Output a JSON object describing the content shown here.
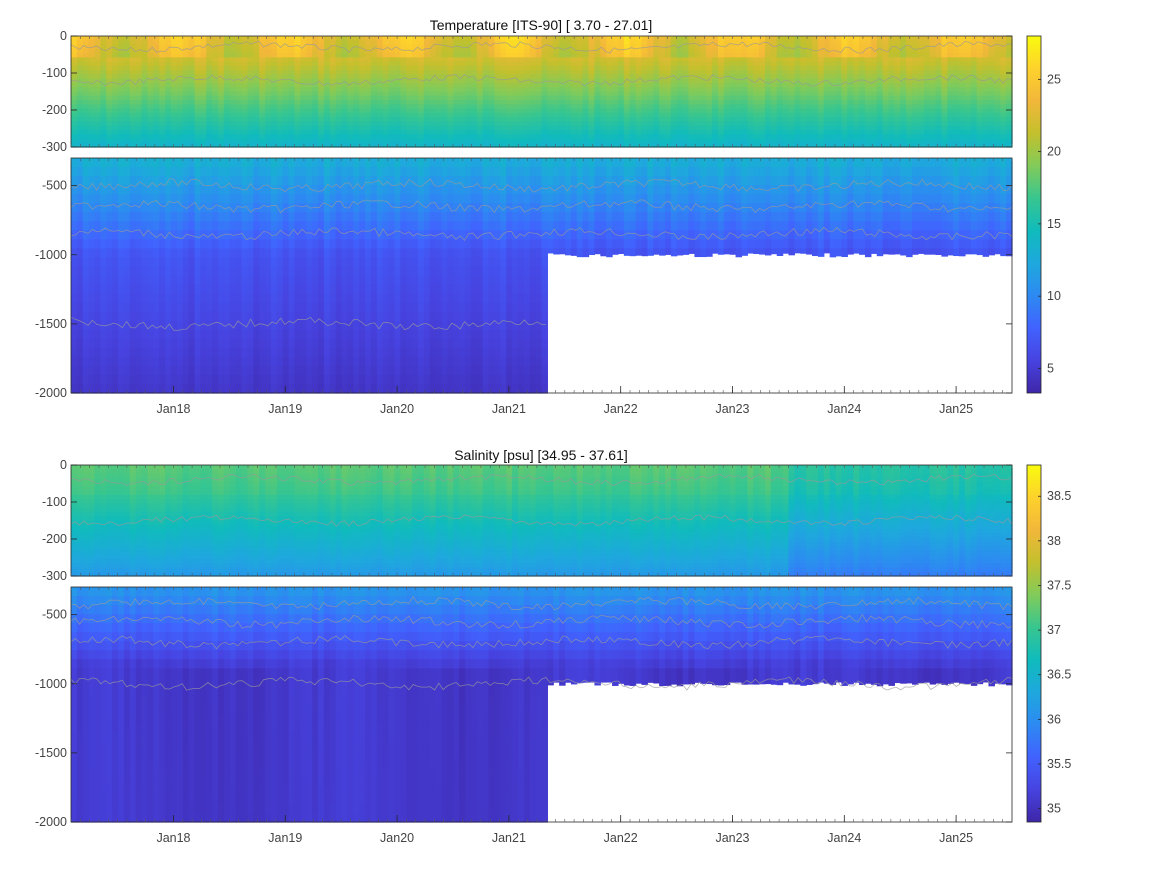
{
  "chart_data": [
    {
      "type": "heatmap",
      "title": "Temperature [ITS-90]   [ 3.70 - 27.01]",
      "x_ticks": [
        "Jan18",
        "Jan19",
        "Jan20",
        "Jan21",
        "Jan22",
        "Jan23",
        "Jan24",
        "Jan25"
      ],
      "x_range": [
        "2017-02",
        "2025-07"
      ],
      "upper_depth": {
        "ylim": [
          -300,
          0
        ],
        "ticks": [
          0,
          -100,
          -200,
          -300
        ],
        "tick_labels": [
          "0",
          "-100",
          "-200",
          "-300"
        ]
      },
      "lower_depth": {
        "ylim": [
          -2000,
          -300
        ],
        "ticks": [
          -500,
          -1000,
          -1500,
          -2000
        ],
        "tick_labels": [
          "-500",
          "-1000",
          "-1500",
          "-2000"
        ]
      },
      "colorbar": {
        "range": [
          3.3,
          28
        ],
        "ticks": [
          5,
          10,
          15,
          20,
          25
        ],
        "tick_labels": [
          "5",
          "10",
          "15",
          "20",
          "25"
        ],
        "colormap": "parula"
      },
      "value_range": [
        3.7,
        27.01
      ],
      "deep_data_end": "2021-05",
      "shallow_max_depth_after": -1000,
      "colors": {
        "low": "#3e26a8",
        "mid": "#1cbfb0",
        "high": "#f9fb0e"
      }
    },
    {
      "type": "heatmap",
      "title": "Salinity [psu]   [34.95 - 37.61]",
      "x_ticks": [
        "Jan18",
        "Jan19",
        "Jan20",
        "Jan21",
        "Jan22",
        "Jan23",
        "Jan24",
        "Jan25"
      ],
      "x_range": [
        "2017-02",
        "2025-07"
      ],
      "upper_depth": {
        "ylim": [
          -300,
          0
        ],
        "ticks": [
          0,
          -100,
          -200,
          -300
        ],
        "tick_labels": [
          "0",
          "-100",
          "-200",
          "-300"
        ]
      },
      "lower_depth": {
        "ylim": [
          -2000,
          -300
        ],
        "ticks": [
          -500,
          -1000,
          -1500,
          -2000
        ],
        "tick_labels": [
          "-500",
          "-1000",
          "-1500",
          "-2000"
        ]
      },
      "colorbar": {
        "range": [
          34.85,
          38.85
        ],
        "ticks": [
          35,
          35.5,
          36,
          36.5,
          37,
          37.5,
          38,
          38.5
        ],
        "tick_labels": [
          "35",
          "35.5",
          "36",
          "36.5",
          "37",
          "37.5",
          "38",
          "38.5"
        ],
        "colormap": "parula"
      },
      "value_range": [
        34.95,
        37.61
      ],
      "deep_data_end": "2021-05",
      "shallow_max_depth_after": -1000,
      "colors": {
        "low": "#3e26a8",
        "mid": "#1cbfb0",
        "high": "#f9fb0e"
      }
    }
  ]
}
